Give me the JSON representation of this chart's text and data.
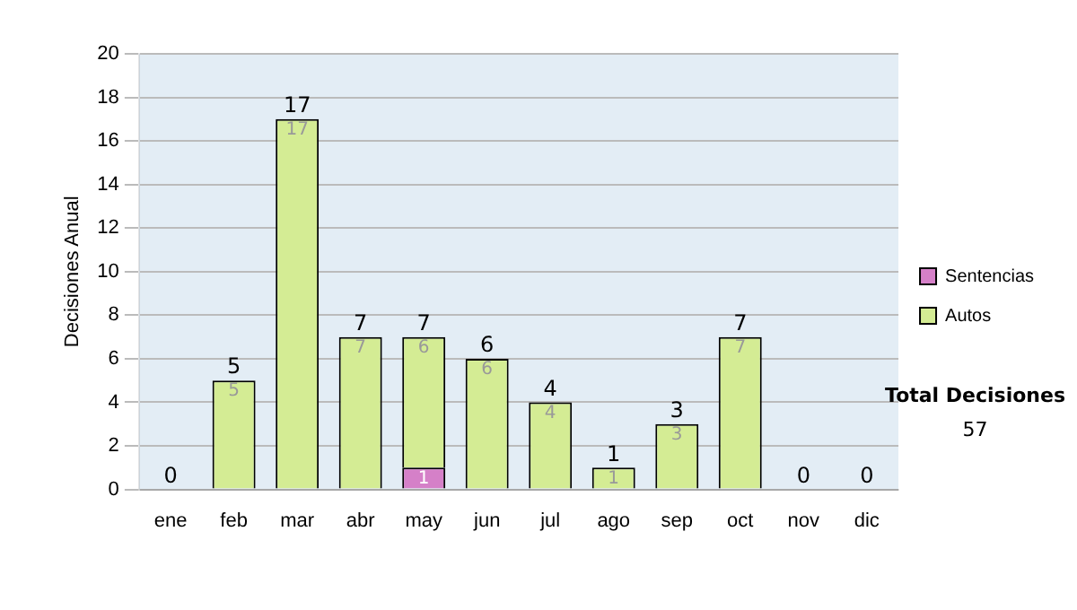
{
  "chart_data": {
    "type": "bar",
    "stacked": true,
    "ylabel": "Decisiones Anual",
    "categories": [
      "ene",
      "feb",
      "mar",
      "abr",
      "may",
      "jun",
      "jul",
      "ago",
      "sep",
      "oct",
      "nov",
      "dic"
    ],
    "series": [
      {
        "name": "Sentencias",
        "color": "#d580c8",
        "values": [
          0,
          0,
          0,
          0,
          1,
          0,
          0,
          0,
          0,
          0,
          0,
          0
        ],
        "value_labels": [
          null,
          null,
          null,
          null,
          "1",
          null,
          null,
          null,
          null,
          null,
          null,
          null
        ]
      },
      {
        "name": "Autos",
        "color": "#d4ec94",
        "values": [
          0,
          5,
          17,
          7,
          6,
          6,
          4,
          1,
          3,
          7,
          0,
          0
        ],
        "value_labels": [
          null,
          "5",
          "17",
          "7",
          "6",
          "6",
          "4",
          "1",
          "3",
          "7",
          null,
          null
        ]
      }
    ],
    "totals": [
      "0",
      "5",
      "17",
      "7",
      "7",
      "6",
      "4",
      "1",
      "3",
      "7",
      "0",
      "0"
    ],
    "ylim": [
      0,
      20
    ],
    "yticks": [
      0,
      2,
      4,
      6,
      8,
      10,
      12,
      14,
      16,
      18,
      20
    ],
    "grid": "y",
    "legend": "right",
    "annotations": [
      "Total Decisiones",
      "57"
    ]
  }
}
